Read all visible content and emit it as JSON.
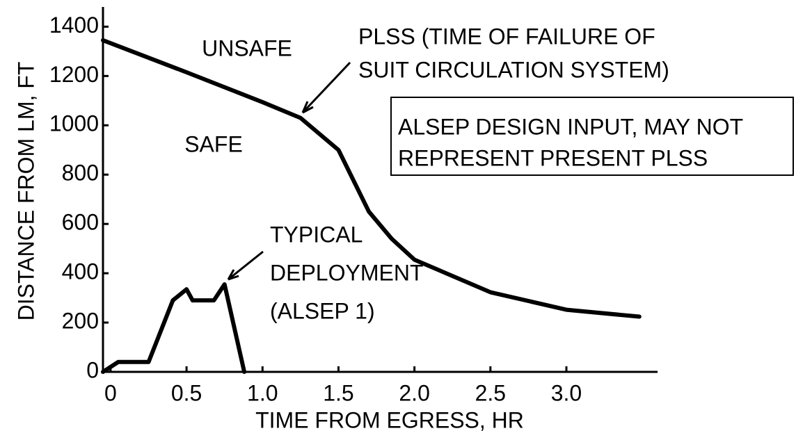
{
  "chart_data": {
    "type": "line",
    "xlabel": "TIME FROM EGRESS, HR",
    "ylabel": "DISTANCE FROM LM, FT",
    "xlim": [
      -0.05,
      3.6
    ],
    "ylim": [
      0,
      1480
    ],
    "xticks": [
      0,
      0.5,
      {
        "value": 1,
        "label": "1.0"
      },
      1.5,
      {
        "value": 2,
        "label": "2.0"
      },
      2.5,
      {
        "value": 3,
        "label": "3.0"
      }
    ],
    "yticks": [
      0,
      200,
      400,
      600,
      800,
      1000,
      1200,
      1400
    ],
    "series": [
      {
        "color": "#000000",
        "x": [
          -0.05,
          0.5,
          1.0,
          1.25,
          1.5,
          1.7,
          1.85,
          2.0,
          2.5,
          3.0,
          3.48
        ],
        "values": [
          1345,
          1215,
          1094,
          1030,
          900,
          650,
          540,
          455,
          323,
          252,
          224
        ]
      },
      {
        "color": "#000000",
        "x": [
          -0.05,
          0.05,
          0.25,
          0.41,
          0.5,
          0.54,
          0.68,
          0.75,
          0.88
        ],
        "values": [
          0,
          40,
          40,
          290,
          335,
          290,
          290,
          355,
          0
        ]
      }
    ],
    "annotations": {
      "unsafe": "UNSAFE",
      "safe": "SAFE",
      "plss": [
        "PLSS (TIME OF FAILURE OF",
        "SUIT CIRCULATION SYSTEM)"
      ],
      "box": [
        "ALSEP DESIGN INPUT, MAY NOT",
        "REPRESENT PRESENT PLSS"
      ],
      "deployment": [
        "TYPICAL",
        "DEPLOYMENT",
        "(ALSEP 1)"
      ]
    }
  }
}
